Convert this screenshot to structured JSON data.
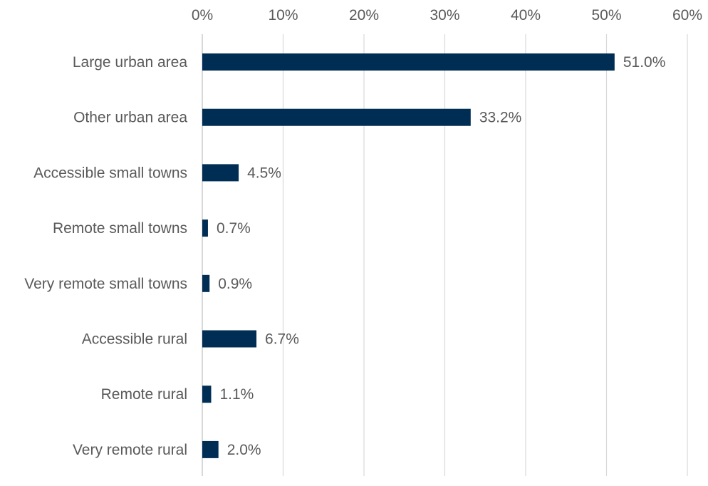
{
  "chart_data": {
    "type": "bar",
    "orientation": "horizontal",
    "title": "",
    "xlabel": "",
    "ylabel": "",
    "xlim": [
      0,
      60
    ],
    "x_ticks": [
      "0%",
      "10%",
      "20%",
      "30%",
      "40%",
      "50%",
      "60%"
    ],
    "x_tick_values": [
      0,
      10,
      20,
      30,
      40,
      50,
      60
    ],
    "x_axis_position": "top",
    "grid": "vertical",
    "legend": "none",
    "bar_color": "#002d54",
    "categories": [
      "Large urban area",
      "Other urban area",
      "Accessible small towns",
      "Remote small towns",
      "Very remote small towns",
      "Accessible rural",
      "Remote rural",
      "Very remote rural"
    ],
    "values": [
      51.0,
      33.2,
      4.5,
      0.7,
      0.9,
      6.7,
      1.1,
      2.0
    ],
    "data_labels": [
      "51.0%",
      "33.2%",
      "4.5%",
      "0.7%",
      "0.9%",
      "6.7%",
      "1.1%",
      "2.0%"
    ]
  }
}
